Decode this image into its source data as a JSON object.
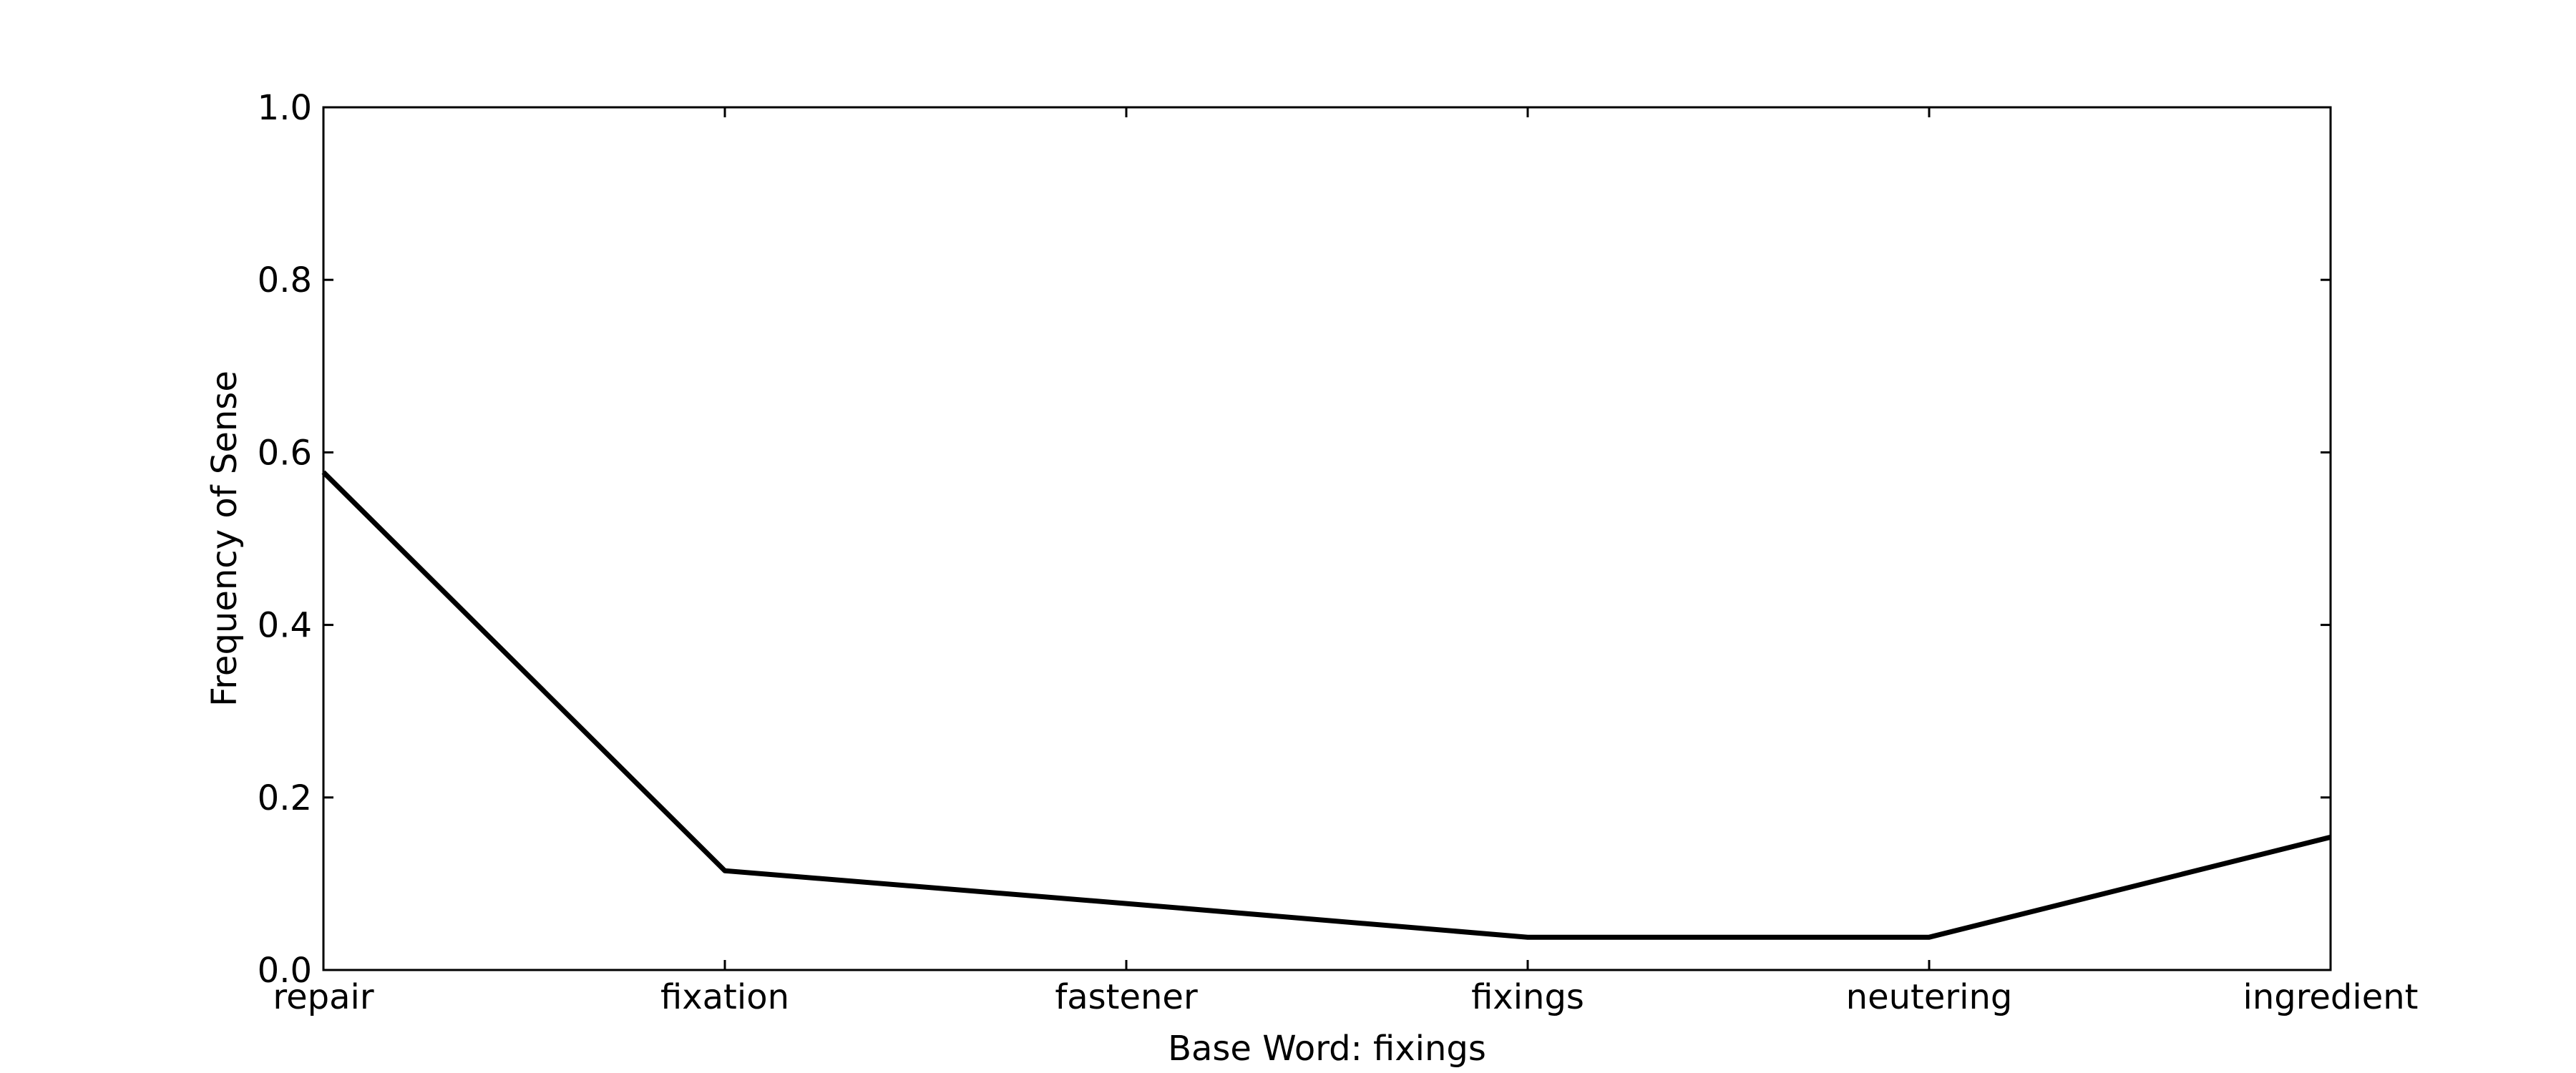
{
  "chart_data": {
    "type": "line",
    "title": "",
    "xlabel": "Base Word: fixings",
    "ylabel": "Frequency of Sense",
    "categories": [
      "repair",
      "fixation",
      "fastener",
      "fixings",
      "neutering",
      "ingredient"
    ],
    "series": [
      {
        "values": [
          0.577,
          0.115,
          0.077,
          0.038,
          0.038,
          0.154
        ]
      }
    ],
    "ylim": [
      0.0,
      1.0
    ],
    "yticks": [
      "0.0",
      "0.2",
      "0.4",
      "0.6",
      "0.8",
      "1.0"
    ],
    "grid": false,
    "legend": "none",
    "line_color": "#000000"
  }
}
